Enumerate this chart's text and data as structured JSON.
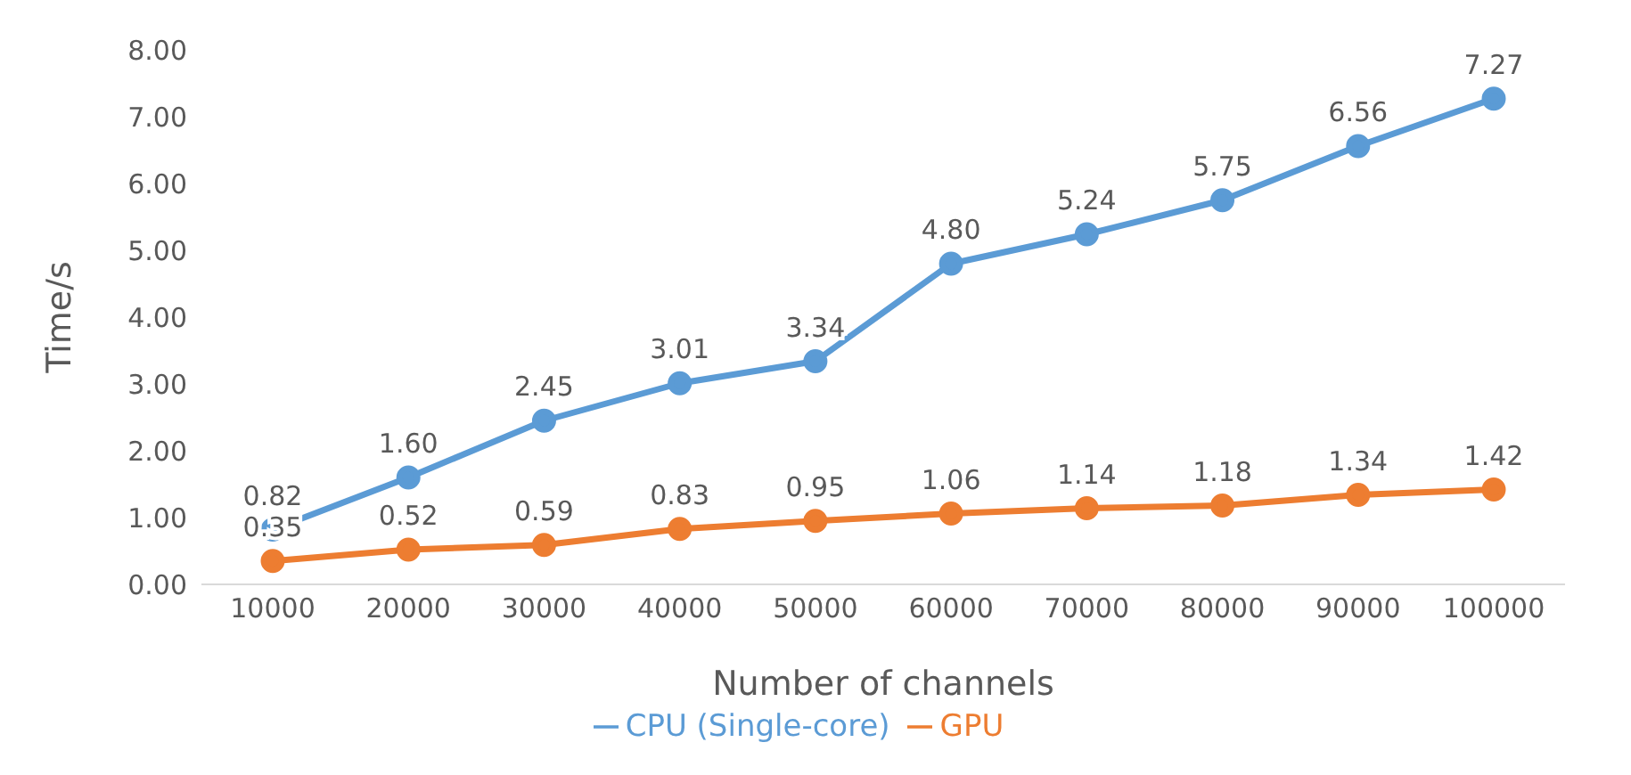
{
  "chart_data": {
    "type": "line",
    "xlabel": "Number of channels",
    "ylabel": "Time/s",
    "categories": [
      "10000",
      "20000",
      "30000",
      "40000",
      "50000",
      "60000",
      "70000",
      "80000",
      "90000",
      "100000"
    ],
    "series": [
      {
        "name": "CPU  (Single-core)",
        "color": "#5b9bd5",
        "values": [
          0.82,
          1.6,
          2.45,
          3.01,
          3.34,
          4.8,
          5.24,
          5.75,
          6.56,
          7.27
        ],
        "value_labels": [
          "0.82",
          "1.60",
          "2.45",
          "3.01",
          "3.34",
          "4.80",
          "5.24",
          "5.75",
          "6.56",
          "7.27"
        ]
      },
      {
        "name": "GPU",
        "color": "#ed7d31",
        "values": [
          0.35,
          0.52,
          0.59,
          0.83,
          0.95,
          1.06,
          1.14,
          1.18,
          1.34,
          1.42
        ],
        "value_labels": [
          "0.35",
          "0.52",
          "0.59",
          "0.83",
          "0.95",
          "1.06",
          "1.14",
          "1.18",
          "1.34",
          "1.42"
        ]
      }
    ],
    "ylim": [
      0,
      8
    ],
    "yticks": [
      {
        "value": 0,
        "label": "0.00"
      },
      {
        "value": 1,
        "label": "1.00"
      },
      {
        "value": 2,
        "label": "2.00"
      },
      {
        "value": 3,
        "label": "3.00"
      },
      {
        "value": 4,
        "label": "4.00"
      },
      {
        "value": 5,
        "label": "5.00"
      },
      {
        "value": 6,
        "label": "6.00"
      },
      {
        "value": 7,
        "label": "7.00"
      },
      {
        "value": 8,
        "label": "8.00"
      }
    ],
    "legend": "bottom",
    "marker": "circle",
    "line_style": "solid"
  }
}
